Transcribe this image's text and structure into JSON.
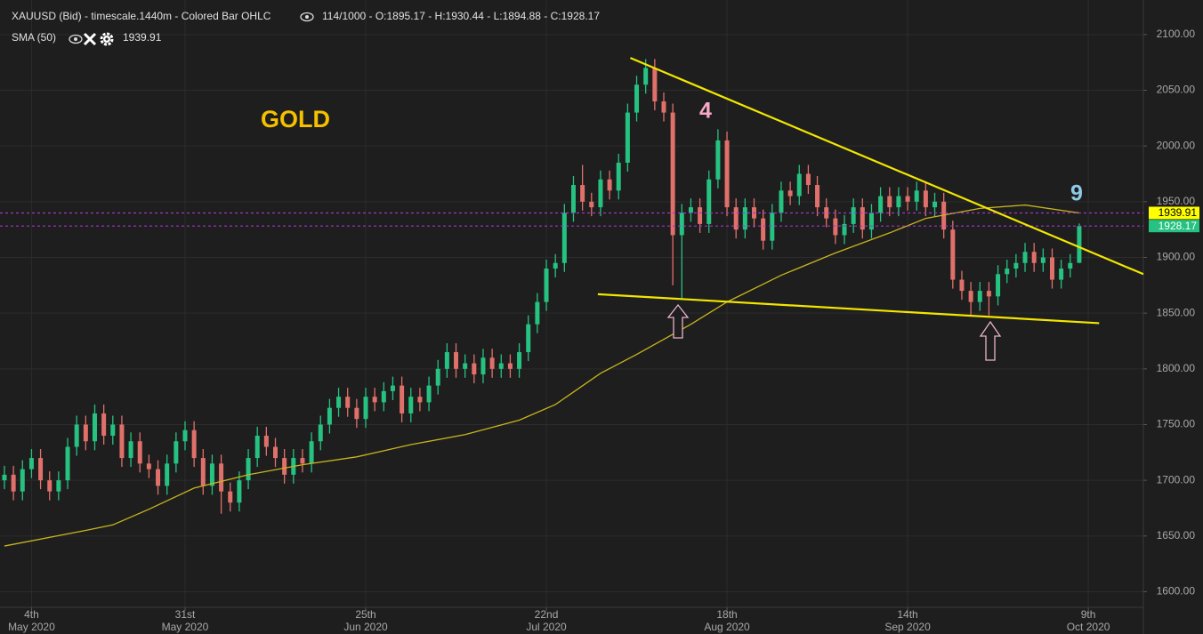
{
  "chart_data": {
    "type": "candlestick",
    "title": "XAUUSD (Bid) - timescale.1440m - Colored Bar OHLC",
    "info": "114/1000 - O:1895.17 - H:1930.44 - L:1894.88 - C:1928.17",
    "annotations": {
      "name": "GOLD",
      "wave_a": "4",
      "wave_b": "9"
    },
    "up_color": "#26c281",
    "down_color": "#e0706a",
    "xlim": [
      -0.49,
      126.1
    ],
    "ylim": [
      1586,
      2131
    ],
    "yticks": [
      {
        "value": 1600,
        "label": "1600.00"
      },
      {
        "value": 1650,
        "label": "1650.00"
      },
      {
        "value": 1700,
        "label": "1700.00"
      },
      {
        "value": 1750,
        "label": "1750.00"
      },
      {
        "value": 1800,
        "label": "1800.00"
      },
      {
        "value": 1850,
        "label": "1850.00"
      },
      {
        "value": 1900,
        "label": "1900.00"
      },
      {
        "value": 1950,
        "label": "1950.00"
      },
      {
        "value": 2000,
        "label": "2000.00"
      },
      {
        "value": 2050,
        "label": "2050.00"
      },
      {
        "value": 2100,
        "label": "2100.00"
      }
    ],
    "xticks": [
      {
        "value": 3,
        "label": "4th",
        "sublabel": "May 2020"
      },
      {
        "value": 20,
        "label": "31st",
        "sublabel": "May 2020"
      },
      {
        "value": 40,
        "label": "25th",
        "sublabel": "Jun 2020"
      },
      {
        "value": 60,
        "label": "22nd",
        "sublabel": "Jul 2020"
      },
      {
        "value": 80,
        "label": "18th",
        "sublabel": "Aug 2020"
      },
      {
        "value": 100,
        "label": "14th",
        "sublabel": "Sep 2020"
      },
      {
        "value": 120,
        "label": "9th",
        "sublabel": "Oct 2020"
      }
    ],
    "grid": true,
    "open": [
      1700,
      1705,
      1690,
      1710,
      1720,
      1700,
      1690,
      1700,
      1730,
      1750,
      1735,
      1760,
      1740,
      1750,
      1720,
      1735,
      1715,
      1710,
      1695,
      1715,
      1735,
      1745,
      1720,
      1695,
      1715,
      1690,
      1680,
      1700,
      1720,
      1740,
      1730,
      1720,
      1705,
      1720,
      1715,
      1735,
      1750,
      1765,
      1775,
      1765,
      1755,
      1775,
      1770,
      1780,
      1785,
      1760,
      1775,
      1770,
      1785,
      1800,
      1815,
      1800,
      1805,
      1795,
      1810,
      1800,
      1805,
      1800,
      1815,
      1840,
      1860,
      1890,
      1895,
      1940,
      1965,
      1950,
      1945,
      1970,
      1960,
      1985,
      2030,
      2055,
      2070,
      2040,
      2030,
      1920,
      1940,
      1945,
      1930,
      1970,
      2005,
      1945,
      1925,
      1945,
      1935,
      1915,
      1940,
      1960,
      1955,
      1975,
      1965,
      1945,
      1935,
      1920,
      1930,
      1945,
      1925,
      1940,
      1955,
      1945,
      1955,
      1950,
      1960,
      1945,
      1950,
      1925,
      1880,
      1870,
      1860,
      1870,
      1865,
      1885,
      1890,
      1895,
      1905,
      1895,
      1900,
      1880,
      1890,
      1895.17
    ],
    "high": [
      1713,
      1713,
      1718,
      1728,
      1728,
      1708,
      1708,
      1738,
      1758,
      1758,
      1768,
      1768,
      1758,
      1758,
      1743,
      1743,
      1723,
      1718,
      1723,
      1743,
      1753,
      1753,
      1728,
      1723,
      1723,
      1698,
      1708,
      1728,
      1748,
      1748,
      1738,
      1728,
      1728,
      1728,
      1743,
      1758,
      1773,
      1783,
      1783,
      1773,
      1783,
      1783,
      1788,
      1793,
      1793,
      1783,
      1783,
      1793,
      1808,
      1823,
      1823,
      1813,
      1813,
      1818,
      1818,
      1813,
      1813,
      1823,
      1848,
      1868,
      1898,
      1903,
      1948,
      1973,
      1983,
      1958,
      1978,
      1978,
      1993,
      2038,
      2063,
      2078,
      2078,
      2048,
      2038,
      1948,
      1953,
      1953,
      1978,
      2015,
      2013,
      1953,
      1953,
      1953,
      1943,
      1948,
      1968,
      1968,
      1983,
      1983,
      1973,
      1953,
      1943,
      1938,
      1953,
      1953,
      1948,
      1963,
      1963,
      1963,
      1963,
      1968,
      1968,
      1958,
      1958,
      1933,
      1888,
      1878,
      1878,
      1878,
      1893,
      1898,
      1903,
      1913,
      1913,
      1908,
      1908,
      1898,
      1903,
      1930.44
    ],
    "low": [
      1692,
      1682,
      1682,
      1702,
      1692,
      1682,
      1682,
      1692,
      1722,
      1727,
      1727,
      1732,
      1732,
      1712,
      1712,
      1707,
      1702,
      1687,
      1687,
      1707,
      1727,
      1712,
      1687,
      1687,
      1670,
      1672,
      1672,
      1692,
      1712,
      1722,
      1712,
      1697,
      1697,
      1707,
      1707,
      1727,
      1742,
      1757,
      1757,
      1747,
      1747,
      1762,
      1762,
      1772,
      1752,
      1752,
      1762,
      1762,
      1777,
      1792,
      1792,
      1792,
      1787,
      1787,
      1792,
      1792,
      1792,
      1792,
      1807,
      1832,
      1852,
      1882,
      1887,
      1932,
      1942,
      1937,
      1937,
      1952,
      1952,
      1977,
      2022,
      2047,
      2032,
      2022,
      1875,
      1862,
      1932,
      1922,
      1922,
      1962,
      1937,
      1917,
      1917,
      1927,
      1907,
      1907,
      1932,
      1947,
      1947,
      1957,
      1937,
      1927,
      1912,
      1912,
      1922,
      1917,
      1917,
      1932,
      1937,
      1937,
      1942,
      1942,
      1937,
      1937,
      1917,
      1872,
      1862,
      1848,
      1852,
      1848,
      1857,
      1877,
      1882,
      1887,
      1887,
      1887,
      1872,
      1872,
      1882,
      1894.88
    ],
    "close": [
      1705,
      1690,
      1710,
      1720,
      1700,
      1690,
      1700,
      1730,
      1750,
      1735,
      1760,
      1740,
      1750,
      1720,
      1735,
      1715,
      1710,
      1695,
      1715,
      1735,
      1745,
      1720,
      1695,
      1715,
      1690,
      1680,
      1700,
      1720,
      1740,
      1730,
      1720,
      1705,
      1720,
      1715,
      1735,
      1750,
      1765,
      1775,
      1765,
      1755,
      1775,
      1770,
      1780,
      1785,
      1760,
      1775,
      1770,
      1785,
      1800,
      1815,
      1800,
      1805,
      1795,
      1810,
      1800,
      1805,
      1800,
      1815,
      1840,
      1860,
      1890,
      1895,
      1940,
      1965,
      1950,
      1945,
      1970,
      1960,
      1985,
      2030,
      2055,
      2070,
      2040,
      2030,
      1920,
      1940,
      1945,
      1930,
      1970,
      2005,
      1945,
      1925,
      1945,
      1935,
      1915,
      1940,
      1960,
      1955,
      1975,
      1965,
      1945,
      1935,
      1920,
      1930,
      1945,
      1925,
      1940,
      1955,
      1945,
      1955,
      1950,
      1960,
      1945,
      1950,
      1925,
      1880,
      1870,
      1860,
      1870,
      1865,
      1885,
      1890,
      1895,
      1905,
      1895,
      1900,
      1880,
      1890,
      1895,
      1928.17
    ],
    "sma": {
      "name": "SMA (50)",
      "color": "#c8b41e",
      "x": [
        0,
        9,
        12,
        16,
        21,
        27,
        33,
        39,
        45,
        51,
        57,
        61,
        66,
        70,
        76,
        80,
        86,
        92,
        98,
        102,
        108,
        113,
        119
      ],
      "values": [
        1641,
        1655,
        1660,
        1674,
        1693,
        1705,
        1714,
        1721,
        1732,
        1741,
        1754,
        1768,
        1796,
        1813,
        1840,
        1860,
        1884,
        1904,
        1922,
        1935,
        1944,
        1947,
        1939.91
      ]
    },
    "price_lines": [
      {
        "value": 1939.91,
        "color": "#ffff00",
        "text_color": "#000000"
      },
      {
        "value": 1928.17,
        "color": "#26c281",
        "text_color": "#ffffff"
      }
    ],
    "line_color": "#a335c9",
    "trendlines": [
      {
        "x": [
          69.3,
          126.1
        ],
        "values": [
          2079,
          1885
        ]
      },
      {
        "x": [
          65.7,
          121.2
        ],
        "values": [
          1867,
          1841
        ]
      }
    ],
    "trend_color": "#f2e600"
  }
}
